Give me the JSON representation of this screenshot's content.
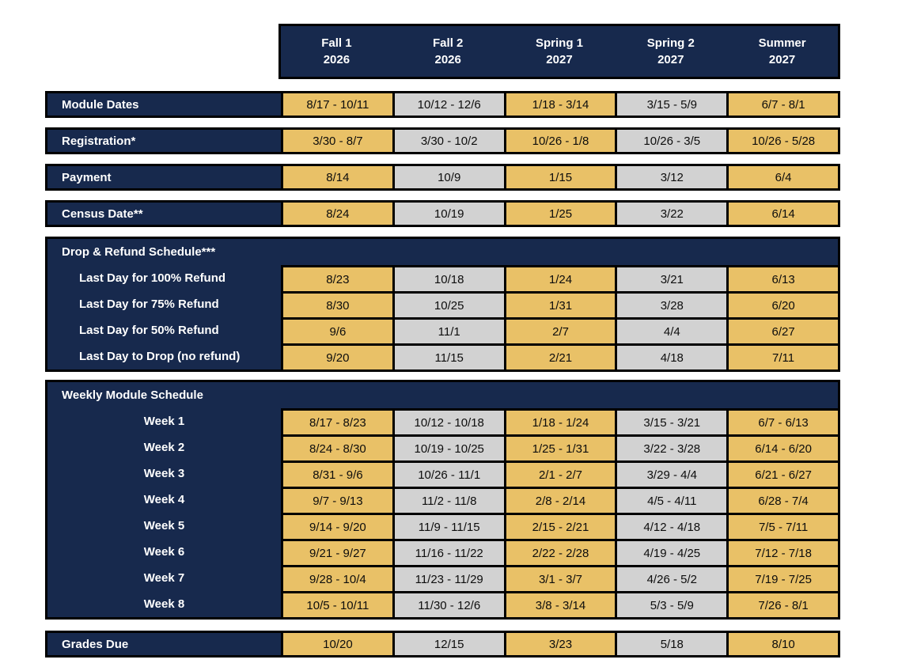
{
  "colors": {
    "navy": "#17294D",
    "gold": "#E9C167",
    "gray": "#D2D2D2",
    "border": "#000000",
    "header_text": "#FFFFFF",
    "cell_text": "#0D0D0D"
  },
  "columns": [
    {
      "season": "Fall 1",
      "year": "2026"
    },
    {
      "season": "Fall 2",
      "year": "2026"
    },
    {
      "season": "Spring 1",
      "year": "2027"
    },
    {
      "season": "Spring 2",
      "year": "2027"
    },
    {
      "season": "Summer",
      "year": "2027"
    }
  ],
  "rows": {
    "module_dates": {
      "label": "Module Dates",
      "values": [
        "8/17 - 10/11",
        "10/12 - 12/6",
        "1/18 - 3/14",
        "3/15 - 5/9",
        "6/7 - 8/1"
      ]
    },
    "registration": {
      "label": "Registration*",
      "values": [
        "3/30 - 8/7",
        "3/30 - 10/2",
        "10/26 - 1/8",
        "10/26 - 3/5",
        "10/26 - 5/28"
      ]
    },
    "payment": {
      "label": "Payment",
      "values": [
        "8/14",
        "10/9",
        "1/15",
        "3/12",
        "6/4"
      ]
    },
    "census": {
      "label": "Census Date**",
      "values": [
        "8/24",
        "10/19",
        "1/25",
        "3/22",
        "6/14"
      ]
    }
  },
  "drop_refund": {
    "title": "Drop & Refund Schedule***",
    "rows": [
      {
        "label": "Last Day for 100% Refund",
        "values": [
          "8/23",
          "10/18",
          "1/24",
          "3/21",
          "6/13"
        ]
      },
      {
        "label": "Last Day for 75% Refund",
        "values": [
          "8/30",
          "10/25",
          "1/31",
          "3/28",
          "6/20"
        ]
      },
      {
        "label": "Last Day for 50% Refund",
        "values": [
          "9/6",
          "11/1",
          "2/7",
          "4/4",
          "6/27"
        ]
      },
      {
        "label": "Last Day to Drop (no refund)",
        "values": [
          "9/20",
          "11/15",
          "2/21",
          "4/18",
          "7/11"
        ]
      }
    ]
  },
  "weekly": {
    "title": "Weekly Module Schedule",
    "rows": [
      {
        "label": "Week 1",
        "values": [
          "8/17 - 8/23",
          "10/12 - 10/18",
          "1/18 - 1/24",
          "3/15 - 3/21",
          "6/7 - 6/13"
        ]
      },
      {
        "label": "Week 2",
        "values": [
          "8/24 - 8/30",
          "10/19 - 10/25",
          "1/25 - 1/31",
          "3/22 - 3/28",
          "6/14 - 6/20"
        ]
      },
      {
        "label": "Week 3",
        "values": [
          "8/31 - 9/6",
          "10/26 - 11/1",
          "2/1 - 2/7",
          "3/29 - 4/4",
          "6/21 - 6/27"
        ]
      },
      {
        "label": "Week 4",
        "values": [
          "9/7 - 9/13",
          "11/2 - 11/8",
          "2/8 - 2/14",
          "4/5 - 4/11",
          "6/28 - 7/4"
        ]
      },
      {
        "label": "Week 5",
        "values": [
          "9/14 - 9/20",
          "11/9 - 11/15",
          "2/15 - 2/21",
          "4/12 - 4/18",
          "7/5 - 7/11"
        ]
      },
      {
        "label": "Week 6",
        "values": [
          "9/21 - 9/27",
          "11/16 - 11/22",
          "2/22 - 2/28",
          "4/19 - 4/25",
          "7/12 - 7/18"
        ]
      },
      {
        "label": "Week 7",
        "values": [
          "9/28 - 10/4",
          "11/23 - 11/29",
          "3/1 - 3/7",
          "4/26 - 5/2",
          "7/19 - 7/25"
        ]
      },
      {
        "label": "Week 8",
        "values": [
          "10/5 - 10/11",
          "11/30 - 12/6",
          "3/8 - 3/14",
          "5/3 - 5/9",
          "7/26 - 8/1"
        ]
      }
    ]
  },
  "grades": {
    "label": "Grades Due",
    "values": [
      "10/20",
      "12/15",
      "3/23",
      "5/18",
      "8/10"
    ]
  }
}
